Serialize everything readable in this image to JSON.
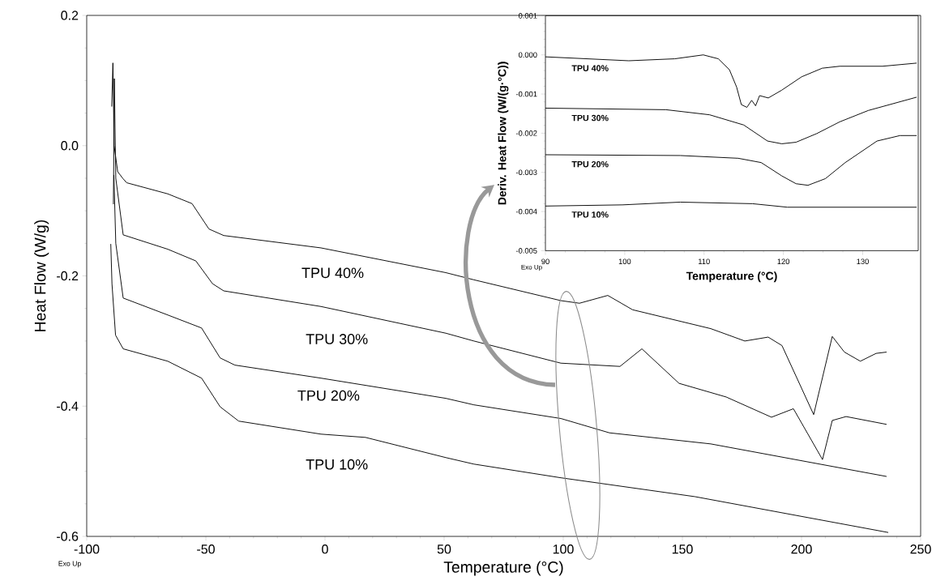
{
  "chart_data": [
    {
      "type": "line",
      "xlabel": "Temperature (°C)",
      "ylabel": "Heat Flow (W/g)",
      "xlim": [
        -100,
        250
      ],
      "ylim": [
        -0.6,
        0.2
      ],
      "xticks": [
        -100,
        -50,
        0,
        50,
        100,
        150,
        200,
        250
      ],
      "yticks": [
        {
          "value": -0.6,
          "label": "-0.6"
        },
        {
          "value": -0.4,
          "label": "-0.4"
        },
        {
          "value": -0.2,
          "label": "-0.2"
        },
        {
          "value": 0,
          "label": "0.0"
        },
        {
          "value": 0.2,
          "label": "0.2"
        }
      ],
      "annotations": [
        "Exo Up"
      ],
      "series": [
        {
          "name": "TPU 40%",
          "color": "#000000",
          "x": [
            -89.5,
            -89,
            -88.5,
            -87,
            -84.7,
            -83.2,
            -66,
            -55.8,
            -48.7,
            -42.5,
            -1.7,
            50.7,
            62.5,
            99,
            106.8,
            118.7,
            129.1,
            161.9,
            176.2,
            186,
            191.8,
            205.1,
            212.9,
            218,
            224.7,
            231.3,
            235.7
          ],
          "values": [
            0.06,
            0.127,
            0.0,
            -0.04,
            -0.051,
            -0.057,
            -0.074,
            -0.089,
            -0.128,
            -0.138,
            -0.157,
            -0.195,
            -0.206,
            -0.238,
            -0.242,
            -0.23,
            -0.252,
            -0.281,
            -0.3,
            -0.294,
            -0.307,
            -0.413,
            -0.293,
            -0.317,
            -0.331,
            -0.319,
            -0.317
          ]
        },
        {
          "name": "TPU 30%",
          "color": "#000000",
          "x": [
            -88.8,
            -88.4,
            -87.8,
            -84.7,
            -66,
            -54.2,
            -47.2,
            -42.5,
            -1.7,
            50.7,
            62.5,
            99,
            123.8,
            133,
            148.6,
            168.4,
            187.4,
            196.6,
            208.8,
            212.9,
            218.7,
            235.7
          ],
          "values": [
            -0.09,
            0.103,
            -0.05,
            -0.137,
            -0.159,
            -0.177,
            -0.212,
            -0.223,
            -0.247,
            -0.288,
            -0.3,
            -0.334,
            -0.339,
            -0.312,
            -0.365,
            -0.386,
            -0.417,
            -0.404,
            -0.482,
            -0.422,
            -0.416,
            -0.428
          ]
        },
        {
          "name": "TPU 20%",
          "color": "#000000",
          "x": [
            -88.6,
            -87.8,
            -84.7,
            -66,
            -51.8,
            -44,
            -37.8,
            -1.7,
            50.7,
            62.5,
            99,
            119.4,
            161.9,
            235.7
          ],
          "values": [
            -0.045,
            -0.15,
            -0.234,
            -0.26,
            -0.28,
            -0.326,
            -0.337,
            -0.357,
            -0.388,
            -0.398,
            -0.419,
            -0.441,
            -0.458,
            -0.508
          ]
        },
        {
          "name": "TPU 10%",
          "color": "#000000",
          "x": [
            -89.9,
            -89.4,
            -87.9,
            -84.7,
            -66,
            -51.8,
            -44,
            -36.2,
            -1.7,
            17,
            50.7,
            62.5,
            99,
            155.3,
            236.4
          ],
          "values": [
            -0.151,
            -0.212,
            -0.291,
            -0.312,
            -0.331,
            -0.357,
            -0.401,
            -0.423,
            -0.443,
            -0.448,
            -0.479,
            -0.489,
            -0.51,
            -0.539,
            -0.594
          ]
        }
      ]
    },
    {
      "type": "line",
      "xlabel": "Temperature (°C)",
      "ylabel": "Deriv. Heat Flow (W/(g·°C))",
      "xlim": [
        90,
        137
      ],
      "ylim": [
        -0.005,
        0.001
      ],
      "xticks": [
        90,
        100,
        110,
        120,
        130
      ],
      "yticks": [
        {
          "value": -0.005,
          "label": "-0.005"
        },
        {
          "value": -0.004,
          "label": "-0.004"
        },
        {
          "value": -0.003,
          "label": "-0.003"
        },
        {
          "value": -0.002,
          "label": "-0.002"
        },
        {
          "value": -0.001,
          "label": "-0.001"
        },
        {
          "value": 0,
          "label": "0.000"
        },
        {
          "value": 0.001,
          "label": "0.001"
        }
      ],
      "annotations": [
        "Exo Up"
      ],
      "series": [
        {
          "name": "TPU 40%",
          "color": "#000000",
          "x": [
            90,
            100.5,
            106.3,
            109.9,
            111.8,
            113.2,
            114.1,
            114.7,
            115.4,
            116,
            116.5,
            117,
            118.1,
            119.8,
            122.3,
            124.9,
            127.1,
            132.5,
            136.8
          ],
          "values": [
            -5e-05,
            -0.00015,
            -0.0001,
            0.0,
            -0.0001,
            -0.00038,
            -0.00082,
            -0.00127,
            -0.00134,
            -0.00116,
            -0.0013,
            -0.00104,
            -0.0011,
            -0.0009,
            -0.00056,
            -0.00034,
            -0.00029,
            -0.00029,
            -0.00021
          ]
        },
        {
          "name": "TPU 30%",
          "color": "#000000",
          "x": [
            90,
            105.2,
            110.7,
            115,
            118,
            119.8,
            121.6,
            124.2,
            127.1,
            130.7,
            136.8
          ],
          "values": [
            -0.00136,
            -0.0014,
            -0.00153,
            -0.00179,
            -0.0022,
            -0.00227,
            -0.00223,
            -0.00201,
            -0.00171,
            -0.00142,
            -0.00108
          ]
        },
        {
          "name": "TPU 20%",
          "color": "#000000",
          "x": [
            90,
            107,
            114.3,
            117.2,
            119.8,
            121.6,
            123.1,
            125.3,
            127.8,
            131.8,
            134.7,
            136.8
          ],
          "values": [
            -0.00255,
            -0.00257,
            -0.00264,
            -0.00275,
            -0.00309,
            -0.00329,
            -0.00333,
            -0.00316,
            -0.00275,
            -0.0022,
            -0.00206,
            -0.00206
          ]
        },
        {
          "name": "TPU 10%",
          "color": "#000000",
          "x": [
            90,
            99.7,
            107,
            116.1,
            120.5,
            136.8
          ],
          "values": [
            -0.00386,
            -0.00383,
            -0.00376,
            -0.0038,
            -0.00389,
            -0.00389
          ]
        }
      ]
    }
  ]
}
